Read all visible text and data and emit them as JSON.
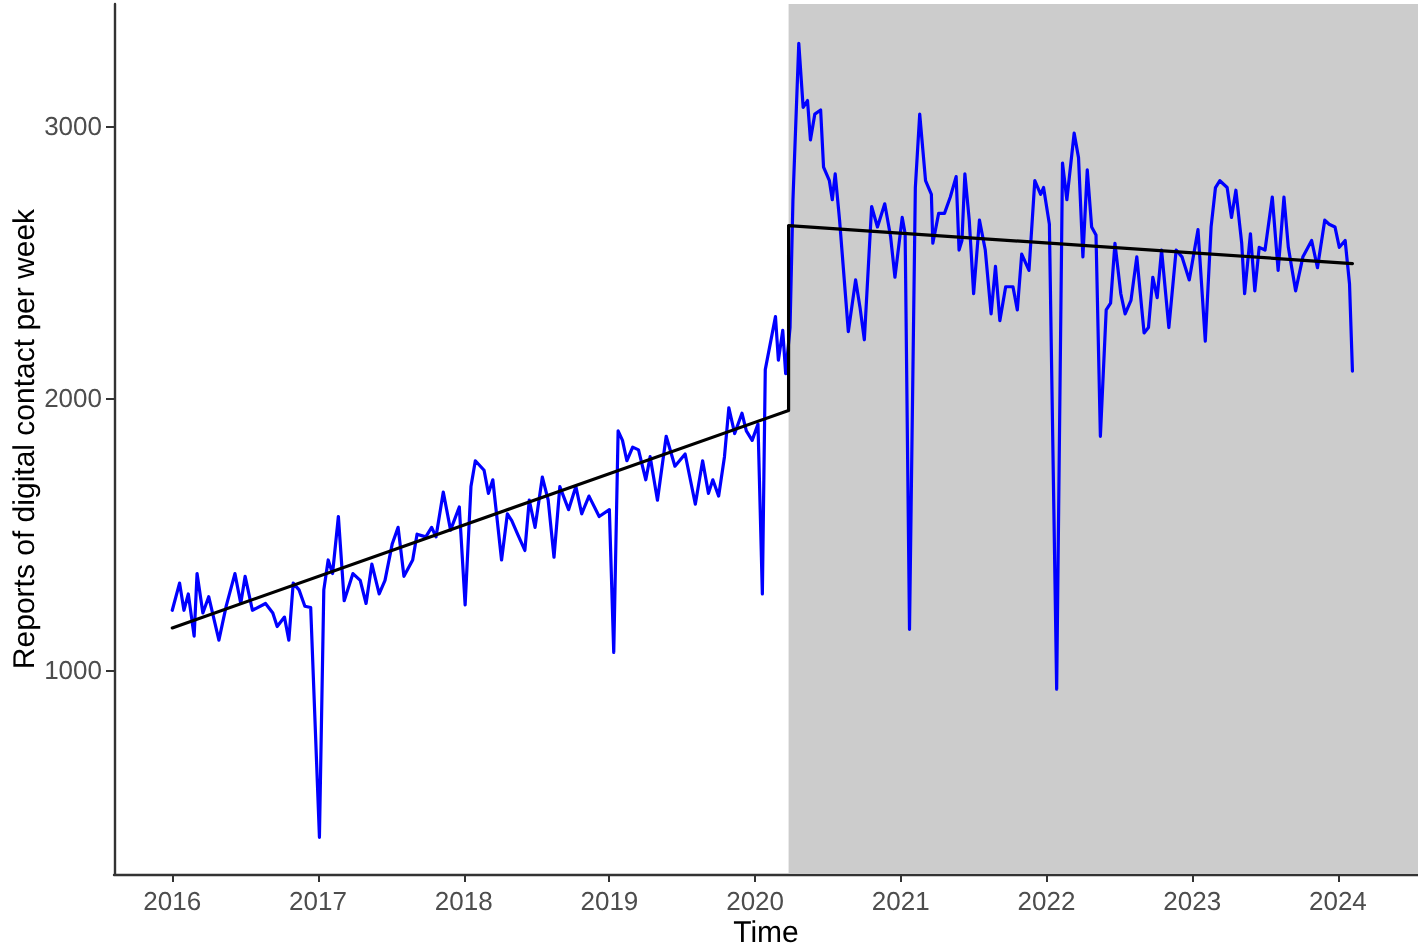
{
  "chart_data": {
    "type": "line",
    "xlabel": "Time",
    "ylabel": "Reports of digital contact per week",
    "xlim": [
      2015.6,
      2024.55
    ],
    "ylim": [
      250,
      3450
    ],
    "xticks": [
      2016,
      2017,
      2018,
      2019,
      2020,
      2021,
      2022,
      2023,
      2024
    ],
    "yticks": [
      1000,
      2000,
      3000
    ],
    "marker": "none",
    "line_style": "solid",
    "bands": [
      {
        "axis": "x",
        "from": 2020.23,
        "to": 2024.55,
        "color": "#cccccc"
      }
    ],
    "series": [
      {
        "color": "#0000ff",
        "x": [
          2016.0,
          2016.05,
          2016.08,
          2016.11,
          2016.15,
          2016.17,
          2016.21,
          2016.25,
          2016.32,
          2016.37,
          2016.43,
          2016.47,
          2016.5,
          2016.55,
          2016.64,
          2016.69,
          2016.72,
          2016.77,
          2016.8,
          2016.83,
          2016.87,
          2016.91,
          2016.95,
          2017.01,
          2017.04,
          2017.07,
          2017.1,
          2017.14,
          2017.18,
          2017.24,
          2017.29,
          2017.33,
          2017.37,
          2017.42,
          2017.46,
          2017.51,
          2017.55,
          2017.59,
          2017.65,
          2017.68,
          2017.74,
          2017.78,
          2017.81,
          2017.86,
          2017.91,
          2017.97,
          2018.01,
          2018.05,
          2018.08,
          2018.14,
          2018.17,
          2018.2,
          2018.26,
          2018.3,
          2018.33,
          2018.37,
          2018.42,
          2018.45,
          2018.49,
          2018.54,
          2018.58,
          2018.62,
          2018.66,
          2018.72,
          2018.77,
          2018.81,
          2018.86,
          2018.93,
          2019.0,
          2019.03,
          2019.06,
          2019.09,
          2019.12,
          2019.16,
          2019.2,
          2019.25,
          2019.28,
          2019.33,
          2019.39,
          2019.45,
          2019.52,
          2019.59,
          2019.64,
          2019.68,
          2019.71,
          2019.75,
          2019.79,
          2019.82,
          2019.86,
          2019.91,
          2019.94,
          2019.98,
          2020.02,
          2020.05,
          2020.07,
          2020.14,
          2020.16,
          2020.19,
          2020.21,
          2020.24,
          2020.26,
          2020.3,
          2020.33,
          2020.36,
          2020.38,
          2020.41,
          2020.45,
          2020.47,
          2020.51,
          2020.53,
          2020.55,
          2020.58,
          2020.64,
          2020.69,
          2020.72,
          2020.75,
          2020.8,
          2020.84,
          2020.89,
          2020.93,
          2020.96,
          2021.01,
          2021.03,
          2021.06,
          2021.1,
          2021.13,
          2021.17,
          2021.21,
          2021.22,
          2021.26,
          2021.3,
          2021.34,
          2021.38,
          2021.4,
          2021.42,
          2021.44,
          2021.47,
          2021.5,
          2021.54,
          2021.58,
          2021.62,
          2021.65,
          2021.68,
          2021.72,
          2021.77,
          2021.8,
          2021.83,
          2021.88,
          2021.92,
          2021.96,
          2021.98,
          2022.02,
          2022.07,
          2022.11,
          2022.14,
          2022.19,
          2022.22,
          2022.25,
          2022.28,
          2022.31,
          2022.34,
          2022.37,
          2022.41,
          2022.44,
          2022.47,
          2022.51,
          2022.54,
          2022.58,
          2022.62,
          2022.67,
          2022.7,
          2022.73,
          2022.76,
          2022.79,
          2022.84,
          2022.89,
          2022.93,
          2022.98,
          2023.04,
          2023.09,
          2023.13,
          2023.16,
          2023.19,
          2023.24,
          2023.27,
          2023.3,
          2023.34,
          2023.36,
          2023.4,
          2023.43,
          2023.46,
          2023.5,
          2023.55,
          2023.59,
          2023.63,
          2023.66,
          2023.71,
          2023.76,
          2023.82,
          2023.86,
          2023.91,
          2023.94,
          2023.98,
          2024.01,
          2024.05,
          2024.08,
          2024.1
        ],
        "values": [
          1220,
          1320,
          1220,
          1280,
          1125,
          1355,
          1210,
          1270,
          1110,
          1235,
          1355,
          1245,
          1345,
          1220,
          1245,
          1210,
          1160,
          1195,
          1110,
          1320,
          1295,
          1235,
          1230,
          385,
          1295,
          1405,
          1355,
          1565,
          1255,
          1355,
          1330,
          1245,
          1390,
          1280,
          1330,
          1465,
          1525,
          1345,
          1405,
          1500,
          1490,
          1525,
          1490,
          1655,
          1515,
          1600,
          1240,
          1675,
          1770,
          1735,
          1650,
          1700,
          1405,
          1575,
          1550,
          1500,
          1440,
          1625,
          1525,
          1710,
          1625,
          1415,
          1675,
          1590,
          1675,
          1575,
          1640,
          1565,
          1590,
          1065,
          1880,
          1845,
          1770,
          1820,
          1810,
          1700,
          1785,
          1625,
          1860,
          1750,
          1795,
          1610,
          1770,
          1650,
          1700,
          1640,
          1785,
          1965,
          1870,
          1945,
          1880,
          1845,
          1905,
          1280,
          2105,
          2300,
          2140,
          2250,
          2090,
          2260,
          2730,
          3305,
          3070,
          3095,
          2950,
          3045,
          3060,
          2850,
          2800,
          2730,
          2825,
          2655,
          2245,
          2435,
          2335,
          2215,
          2705,
          2630,
          2715,
          2595,
          2445,
          2665,
          2605,
          1150,
          2775,
          3045,
          2800,
          2750,
          2570,
          2680,
          2680,
          2740,
          2815,
          2545,
          2580,
          2825,
          2655,
          2385,
          2655,
          2545,
          2310,
          2485,
          2285,
          2410,
          2410,
          2325,
          2530,
          2470,
          2800,
          2750,
          2775,
          2640,
          930,
          2865,
          2730,
          2975,
          2885,
          2520,
          2840,
          2630,
          2600,
          1860,
          2325,
          2350,
          2570,
          2385,
          2310,
          2360,
          2520,
          2240,
          2260,
          2445,
          2370,
          2545,
          2260,
          2545,
          2520,
          2435,
          2620,
          2210,
          2630,
          2775,
          2800,
          2775,
          2665,
          2765,
          2570,
          2385,
          2605,
          2395,
          2555,
          2545,
          2740,
          2470,
          2740,
          2555,
          2395,
          2520,
          2580,
          2480,
          2655,
          2640,
          2630,
          2555,
          2580,
          2420,
          2100
        ]
      },
      {
        "type": "line",
        "color": "#000000",
        "x": [
          2016.0,
          2020.23,
          2020.23,
          2024.1
        ],
        "values": [
          1155,
          1955,
          2635,
          2495
        ]
      }
    ]
  }
}
